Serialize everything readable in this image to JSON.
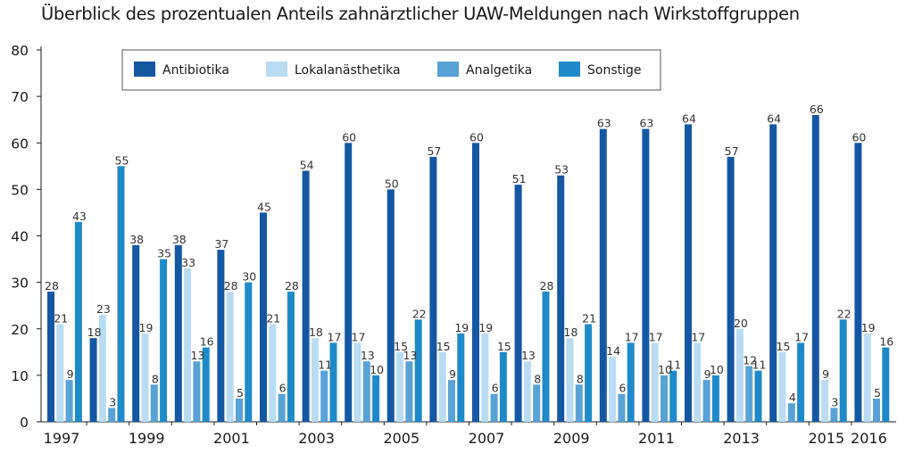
{
  "chart_data": {
    "type": "bar",
    "title": "Überblick des prozentualen Anteils zahnärztlicher UAW-Meldungen nach Wirkstoffgruppen",
    "xlabel": "",
    "ylabel": "",
    "ylim": [
      0,
      80
    ],
    "yticks": [
      "0",
      "10",
      "20",
      "30",
      "40",
      "50",
      "60",
      "70",
      "80"
    ],
    "categories": [
      "1997",
      "1998",
      "1999",
      "2000",
      "2001",
      "2002",
      "2003",
      "2004",
      "2005",
      "2006",
      "2007",
      "2008",
      "2009",
      "2010",
      "2011",
      "2012",
      "2013",
      "2014",
      "2015",
      "2016"
    ],
    "xtick_labels": [
      "1997",
      "",
      "1999",
      "",
      "2001",
      "",
      "2003",
      "",
      "2005",
      "",
      "2007",
      "",
      "2009",
      "",
      "2011",
      "",
      "2013",
      "",
      "2015",
      "2016"
    ],
    "series": [
      {
        "name": "Antibiotika",
        "color": "#1457a3",
        "values": [
          28,
          18,
          38,
          38,
          37,
          45,
          54,
          60,
          50,
          57,
          60,
          51,
          53,
          63,
          63,
          64,
          57,
          64,
          66,
          60
        ]
      },
      {
        "name": "Lokalanästhetika",
        "color": "#b9dcf3",
        "values": [
          21,
          23,
          19,
          33,
          28,
          21,
          18,
          17,
          15,
          15,
          19,
          13,
          18,
          14,
          17,
          17,
          20,
          15,
          9,
          19
        ]
      },
      {
        "name": "Analgetika",
        "color": "#58a2d6",
        "values": [
          9,
          3,
          8,
          13,
          5,
          6,
          11,
          13,
          13,
          9,
          6,
          8,
          8,
          6,
          10,
          9,
          12,
          4,
          3,
          5
        ]
      },
      {
        "name": "Sonstige",
        "color": "#1e8ac9",
        "values": [
          43,
          55,
          35,
          16,
          30,
          28,
          17,
          10,
          22,
          19,
          15,
          28,
          21,
          17,
          11,
          10,
          11,
          17,
          22,
          16
        ]
      }
    ],
    "legend_position": "top-left",
    "grid": false,
    "data_labels": true
  }
}
